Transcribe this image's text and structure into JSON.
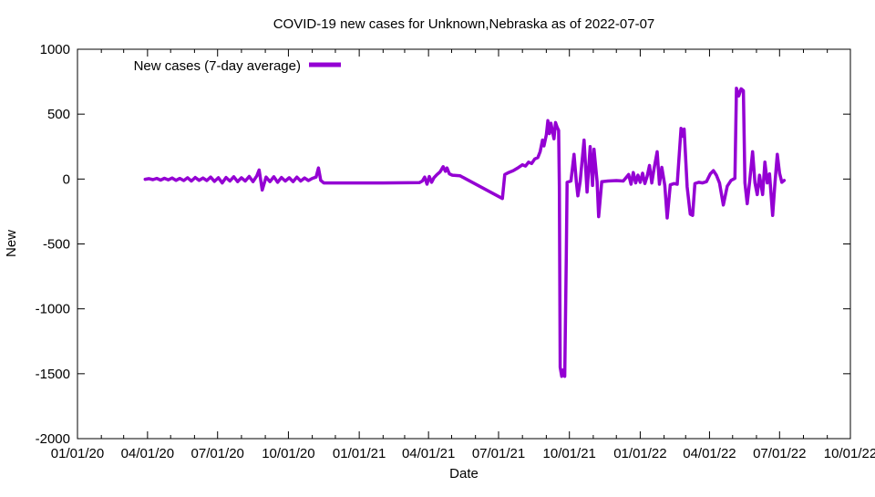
{
  "header": {
    "title": "COVID-19 new cases for Unknown,Nebraska as of 2022-07-07"
  },
  "axes": {
    "xlabel": "Date",
    "ylabel": "New"
  },
  "legend": {
    "label": "New cases (7-day average)"
  },
  "colors": {
    "series": "#9400d3",
    "axis": "#000000",
    "background": "#ffffff"
  },
  "chart_data": {
    "type": "line",
    "title": "COVID-19 new cases for Unknown,Nebraska as of 2022-07-07",
    "xlabel": "Date",
    "ylabel": "New",
    "x_range": [
      "2020-01-01",
      "2022-10-01"
    ],
    "ylim": [
      -2000,
      1000
    ],
    "grid": false,
    "legend_position": "top-left-inside",
    "x_minor_ticks": "monthly",
    "x_ticks": [
      {
        "date": "2020-01-01",
        "label": "01/01/20"
      },
      {
        "date": "2020-04-01",
        "label": "04/01/20"
      },
      {
        "date": "2020-07-01",
        "label": "07/01/20"
      },
      {
        "date": "2020-10-01",
        "label": "10/01/20"
      },
      {
        "date": "2021-01-01",
        "label": "01/01/21"
      },
      {
        "date": "2021-04-01",
        "label": "04/01/21"
      },
      {
        "date": "2021-07-01",
        "label": "07/01/21"
      },
      {
        "date": "2021-10-01",
        "label": "10/01/21"
      },
      {
        "date": "2022-01-01",
        "label": "01/01/22"
      },
      {
        "date": "2022-04-01",
        "label": "04/01/22"
      },
      {
        "date": "2022-07-01",
        "label": "07/01/22"
      },
      {
        "date": "2022-10-01",
        "label": "10/01/22"
      }
    ],
    "y_ticks": [
      {
        "value": 1000,
        "label": "1000"
      },
      {
        "value": 500,
        "label": "500"
      },
      {
        "value": 0,
        "label": "0"
      },
      {
        "value": -500,
        "label": "-500"
      },
      {
        "value": -1000,
        "label": "-1000"
      },
      {
        "value": -1500,
        "label": "-1500"
      },
      {
        "value": -2000,
        "label": "-2000"
      }
    ],
    "series": [
      {
        "name": "New cases (7-day average)",
        "color": "#9400d3",
        "points": [
          [
            "2020-03-29",
            -2
          ],
          [
            "2020-04-03",
            3
          ],
          [
            "2020-04-08",
            -5
          ],
          [
            "2020-04-13",
            5
          ],
          [
            "2020-04-18",
            -8
          ],
          [
            "2020-04-23",
            6
          ],
          [
            "2020-04-28",
            -6
          ],
          [
            "2020-05-03",
            8
          ],
          [
            "2020-05-08",
            -10
          ],
          [
            "2020-05-13",
            5
          ],
          [
            "2020-05-18",
            -12
          ],
          [
            "2020-05-23",
            10
          ],
          [
            "2020-05-28",
            -15
          ],
          [
            "2020-06-02",
            12
          ],
          [
            "2020-06-07",
            -10
          ],
          [
            "2020-06-12",
            8
          ],
          [
            "2020-06-17",
            -12
          ],
          [
            "2020-06-22",
            15
          ],
          [
            "2020-06-27",
            -18
          ],
          [
            "2020-07-02",
            10
          ],
          [
            "2020-07-07",
            -30
          ],
          [
            "2020-07-12",
            12
          ],
          [
            "2020-07-17",
            -15
          ],
          [
            "2020-07-22",
            18
          ],
          [
            "2020-07-27",
            -20
          ],
          [
            "2020-08-01",
            10
          ],
          [
            "2020-08-06",
            -15
          ],
          [
            "2020-08-11",
            20
          ],
          [
            "2020-08-16",
            -20
          ],
          [
            "2020-08-21",
            25
          ],
          [
            "2020-08-24",
            70
          ],
          [
            "2020-08-28",
            -85
          ],
          [
            "2020-09-02",
            15
          ],
          [
            "2020-09-07",
            -20
          ],
          [
            "2020-09-12",
            18
          ],
          [
            "2020-09-17",
            -25
          ],
          [
            "2020-09-22",
            12
          ],
          [
            "2020-09-27",
            -15
          ],
          [
            "2020-10-02",
            10
          ],
          [
            "2020-10-07",
            -20
          ],
          [
            "2020-10-12",
            15
          ],
          [
            "2020-10-17",
            -15
          ],
          [
            "2020-10-22",
            8
          ],
          [
            "2020-10-27",
            -12
          ],
          [
            "2020-11-01",
            5
          ],
          [
            "2020-11-06",
            15
          ],
          [
            "2020-11-09",
            85
          ],
          [
            "2020-11-12",
            -10
          ],
          [
            "2020-11-16",
            -30
          ],
          [
            "2020-12-15",
            -30
          ],
          [
            "2021-02-01",
            -30
          ],
          [
            "2021-03-20",
            -28
          ],
          [
            "2021-03-24",
            -15
          ],
          [
            "2021-03-27",
            15
          ],
          [
            "2021-03-30",
            -40
          ],
          [
            "2021-04-02",
            20
          ],
          [
            "2021-04-05",
            -25
          ],
          [
            "2021-04-08",
            10
          ],
          [
            "2021-04-12",
            35
          ],
          [
            "2021-04-16",
            55
          ],
          [
            "2021-04-20",
            95
          ],
          [
            "2021-04-23",
            60
          ],
          [
            "2021-04-25",
            85
          ],
          [
            "2021-04-28",
            40
          ],
          [
            "2021-05-02",
            30
          ],
          [
            "2021-05-12",
            25
          ],
          [
            "2021-07-06",
            -150
          ],
          [
            "2021-07-09",
            35
          ],
          [
            "2021-07-14",
            50
          ],
          [
            "2021-07-20",
            65
          ],
          [
            "2021-07-26",
            85
          ],
          [
            "2021-08-01",
            110
          ],
          [
            "2021-08-05",
            100
          ],
          [
            "2021-08-09",
            130
          ],
          [
            "2021-08-13",
            120
          ],
          [
            "2021-08-17",
            155
          ],
          [
            "2021-08-21",
            165
          ],
          [
            "2021-08-24",
            210
          ],
          [
            "2021-08-27",
            300
          ],
          [
            "2021-08-29",
            255
          ],
          [
            "2021-09-01",
            340
          ],
          [
            "2021-09-03",
            450
          ],
          [
            "2021-09-05",
            350
          ],
          [
            "2021-09-07",
            430
          ],
          [
            "2021-09-09",
            370
          ],
          [
            "2021-09-11",
            310
          ],
          [
            "2021-09-13",
            435
          ],
          [
            "2021-09-15",
            400
          ],
          [
            "2021-09-17",
            375
          ],
          [
            "2021-09-18",
            -60
          ],
          [
            "2021-09-19",
            -1450
          ],
          [
            "2021-09-21",
            -1520
          ],
          [
            "2021-09-23",
            -1470
          ],
          [
            "2021-09-25",
            -1520
          ],
          [
            "2021-09-27",
            -600
          ],
          [
            "2021-09-28",
            -25
          ],
          [
            "2021-10-03",
            -15
          ],
          [
            "2021-10-07",
            190
          ],
          [
            "2021-10-10",
            -20
          ],
          [
            "2021-10-12",
            -130
          ],
          [
            "2021-10-15",
            -20
          ],
          [
            "2021-10-20",
            300
          ],
          [
            "2021-10-24",
            -100
          ],
          [
            "2021-10-28",
            250
          ],
          [
            "2021-10-31",
            -50
          ],
          [
            "2021-11-02",
            230
          ],
          [
            "2021-11-06",
            -20
          ],
          [
            "2021-11-08",
            -290
          ],
          [
            "2021-11-12",
            -20
          ],
          [
            "2021-11-20",
            -15
          ],
          [
            "2021-12-01",
            -12
          ],
          [
            "2021-12-10",
            -15
          ],
          [
            "2021-12-17",
            35
          ],
          [
            "2021-12-20",
            -40
          ],
          [
            "2021-12-23",
            50
          ],
          [
            "2021-12-26",
            -30
          ],
          [
            "2021-12-29",
            30
          ],
          [
            "2022-01-01",
            -25
          ],
          [
            "2022-01-04",
            45
          ],
          [
            "2022-01-07",
            -35
          ],
          [
            "2022-01-10",
            20
          ],
          [
            "2022-01-13",
            105
          ],
          [
            "2022-01-16",
            -30
          ],
          [
            "2022-01-19",
            80
          ],
          [
            "2022-01-23",
            210
          ],
          [
            "2022-01-26",
            -40
          ],
          [
            "2022-01-29",
            90
          ],
          [
            "2022-02-02",
            -50
          ],
          [
            "2022-02-05",
            -300
          ],
          [
            "2022-02-09",
            -45
          ],
          [
            "2022-02-14",
            -35
          ],
          [
            "2022-02-18",
            -40
          ],
          [
            "2022-02-23",
            390
          ],
          [
            "2022-02-25",
            330
          ],
          [
            "2022-02-27",
            385
          ],
          [
            "2022-03-03",
            -60
          ],
          [
            "2022-03-07",
            -270
          ],
          [
            "2022-03-10",
            -280
          ],
          [
            "2022-03-13",
            -35
          ],
          [
            "2022-03-18",
            -25
          ],
          [
            "2022-03-23",
            -30
          ],
          [
            "2022-03-28",
            -20
          ],
          [
            "2022-04-02",
            40
          ],
          [
            "2022-04-06",
            65
          ],
          [
            "2022-04-10",
            30
          ],
          [
            "2022-04-14",
            -30
          ],
          [
            "2022-04-19",
            -200
          ],
          [
            "2022-04-24",
            -55
          ],
          [
            "2022-04-29",
            -10
          ],
          [
            "2022-05-04",
            5
          ],
          [
            "2022-05-06",
            700
          ],
          [
            "2022-05-09",
            640
          ],
          [
            "2022-05-12",
            695
          ],
          [
            "2022-05-15",
            680
          ],
          [
            "2022-05-17",
            -30
          ],
          [
            "2022-05-20",
            -190
          ],
          [
            "2022-05-23",
            -25
          ],
          [
            "2022-05-27",
            210
          ],
          [
            "2022-05-30",
            -30
          ],
          [
            "2022-06-02",
            -120
          ],
          [
            "2022-06-05",
            30
          ],
          [
            "2022-06-09",
            -120
          ],
          [
            "2022-06-12",
            130
          ],
          [
            "2022-06-15",
            -30
          ],
          [
            "2022-06-18",
            40
          ],
          [
            "2022-06-22",
            -280
          ],
          [
            "2022-06-25",
            -35
          ],
          [
            "2022-06-28",
            190
          ],
          [
            "2022-07-01",
            45
          ],
          [
            "2022-07-04",
            -25
          ],
          [
            "2022-07-07",
            -10
          ]
        ]
      }
    ]
  }
}
